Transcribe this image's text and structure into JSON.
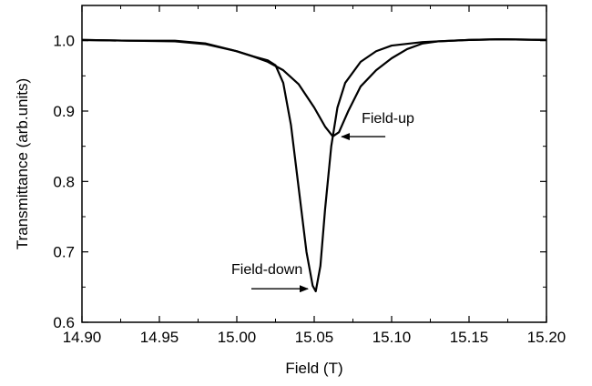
{
  "chart_data": {
    "type": "line",
    "title": "",
    "xlabel": "Field (T)",
    "ylabel": "Transmittance (arb.units)",
    "xlim": [
      14.9,
      15.2
    ],
    "ylim": [
      0.6,
      1.05
    ],
    "grid": false,
    "legend": "none",
    "x_ticks": [
      14.9,
      14.95,
      15.0,
      15.05,
      15.1,
      15.15,
      15.2
    ],
    "x_tick_labels": [
      "14.90",
      "14.95",
      "15.00",
      "15.05",
      "15.10",
      "15.15",
      "15.20"
    ],
    "y_ticks": [
      0.6,
      0.7,
      0.8,
      0.9,
      1.0
    ],
    "y_tick_labels": [
      "0.6",
      "0.7",
      "0.8",
      "0.9",
      "1.0"
    ],
    "series": [
      {
        "id": "field-up",
        "color": "#000000",
        "points": [
          [
            14.9,
            1.001
          ],
          [
            14.93,
            1.0
          ],
          [
            14.96,
            0.999
          ],
          [
            14.98,
            0.995
          ],
          [
            15.0,
            0.985
          ],
          [
            15.01,
            0.978
          ],
          [
            15.02,
            0.97
          ],
          [
            15.03,
            0.958
          ],
          [
            15.04,
            0.938
          ],
          [
            15.05,
            0.905
          ],
          [
            15.057,
            0.878
          ],
          [
            15.062,
            0.864
          ],
          [
            15.066,
            0.87
          ],
          [
            15.072,
            0.9
          ],
          [
            15.08,
            0.935
          ],
          [
            15.09,
            0.958
          ],
          [
            15.1,
            0.975
          ],
          [
            15.11,
            0.988
          ],
          [
            15.12,
            0.996
          ],
          [
            15.13,
            0.999
          ],
          [
            15.15,
            1.001
          ],
          [
            15.17,
            1.002
          ],
          [
            15.2,
            1.001
          ]
        ]
      },
      {
        "id": "field-down",
        "color": "#000000",
        "points": [
          [
            14.9,
            1.001
          ],
          [
            14.93,
            1.0
          ],
          [
            14.96,
            1.0
          ],
          [
            14.98,
            0.996
          ],
          [
            15.0,
            0.985
          ],
          [
            15.01,
            0.978
          ],
          [
            15.02,
            0.972
          ],
          [
            15.025,
            0.965
          ],
          [
            15.03,
            0.94
          ],
          [
            15.035,
            0.88
          ],
          [
            15.04,
            0.79
          ],
          [
            15.045,
            0.7
          ],
          [
            15.049,
            0.652
          ],
          [
            15.051,
            0.644
          ],
          [
            15.054,
            0.68
          ],
          [
            15.057,
            0.76
          ],
          [
            15.061,
            0.85
          ],
          [
            15.065,
            0.905
          ],
          [
            15.07,
            0.94
          ],
          [
            15.08,
            0.97
          ],
          [
            15.09,
            0.985
          ],
          [
            15.1,
            0.993
          ],
          [
            15.12,
            0.998
          ],
          [
            15.15,
            1.001
          ],
          [
            15.17,
            1.002
          ],
          [
            15.2,
            1.001
          ]
        ]
      }
    ],
    "annotations": [
      {
        "text": "Field-up",
        "arrow_to": [
          15.063,
          0.865
        ]
      },
      {
        "text": "Field-down",
        "arrow_to": [
          15.05,
          0.645
        ]
      }
    ]
  }
}
